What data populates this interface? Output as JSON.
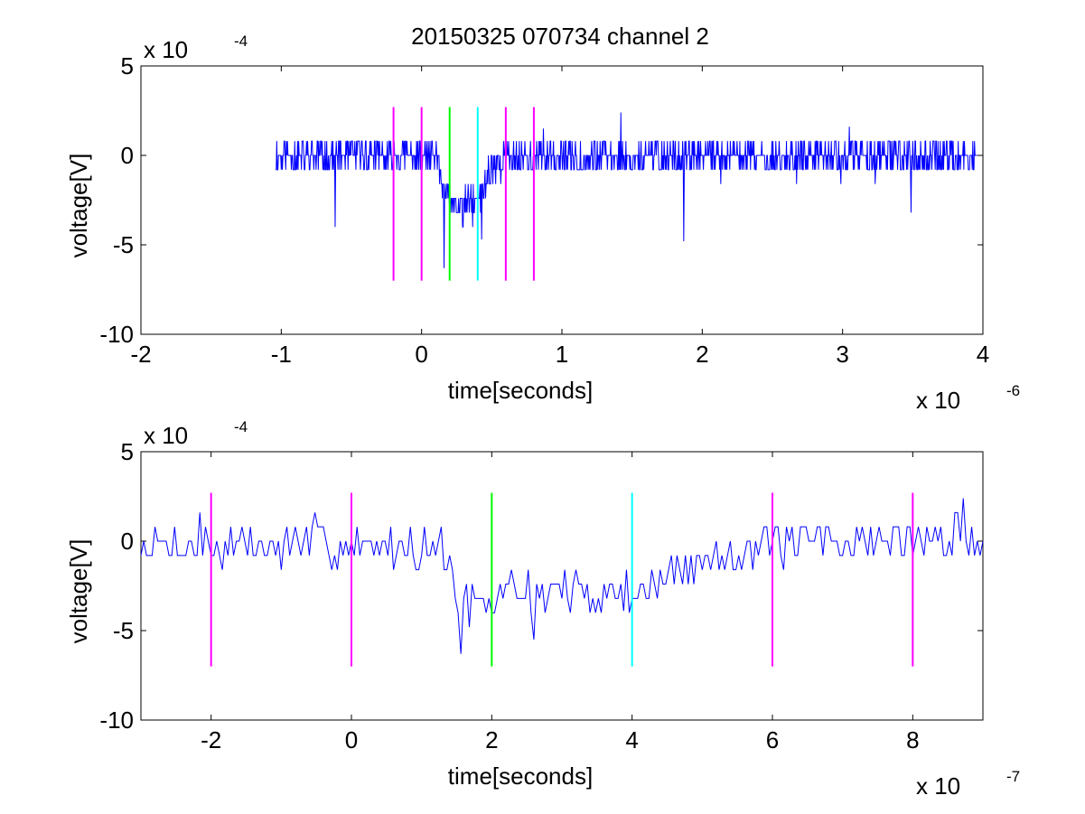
{
  "figure": {
    "title": "20150325 070734 channel 2"
  },
  "chart_data": [
    {
      "type": "line",
      "xlabel": "time[seconds]",
      "ylabel": "voltage[V]",
      "x_exponent_label": "x 10",
      "x_exponent": "-6",
      "y_exponent_label": "x 10",
      "y_exponent": "-4",
      "xlim": [
        -2,
        4
      ],
      "ylim": [
        -10,
        5
      ],
      "xticks": [
        -2,
        -1,
        0,
        1,
        2,
        3,
        4
      ],
      "xtick_labels": [
        "-2",
        "-1",
        "0",
        "1",
        "2",
        "3",
        "4"
      ],
      "yticks": [
        -10,
        -5,
        0,
        5
      ],
      "ytick_labels": [
        "-10",
        "-5",
        "0",
        "5"
      ],
      "grid": false,
      "trace": {
        "color": "#0000ff",
        "x_start": -1.04,
        "x_end": 3.96,
        "x_step": 0.004,
        "envelope": [
          [
            -1.04,
            0.0
          ],
          [
            -0.3,
            0.0
          ],
          [
            -0.25,
            -0.2
          ],
          [
            -0.2,
            0.0
          ],
          [
            0.1,
            -0.1
          ],
          [
            0.15,
            -1.5
          ],
          [
            0.2,
            -2.8
          ],
          [
            0.25,
            -3.0
          ],
          [
            0.3,
            -3.0
          ],
          [
            0.35,
            -2.8
          ],
          [
            0.4,
            -2.6
          ],
          [
            0.45,
            -1.5
          ],
          [
            0.5,
            -0.6
          ],
          [
            0.6,
            -0.2
          ],
          [
            0.8,
            -0.1
          ],
          [
            3.96,
            -0.1
          ]
        ],
        "noise_amplitude": 0.9,
        "quantization": 0.8,
        "seed": 11,
        "spikes": [
          {
            "x": -0.615,
            "y": -4.0
          },
          {
            "x": 0.16,
            "y": -6.3
          },
          {
            "x": 0.43,
            "y": -4.7
          },
          {
            "x": 1.42,
            "y": 2.4
          },
          {
            "x": 1.87,
            "y": -4.8
          },
          {
            "x": 0.87,
            "y": 1.5
          },
          {
            "x": 3.05,
            "y": 1.6
          },
          {
            "x": 3.49,
            "y": -3.2
          }
        ]
      },
      "markers": [
        {
          "x": -0.2,
          "color": "#ff00ff",
          "ymin": -7.0,
          "ymax": 2.7
        },
        {
          "x": 0.0,
          "color": "#ff00ff",
          "ymin": -7.0,
          "ymax": 2.7
        },
        {
          "x": 0.2,
          "color": "#00ff00",
          "ymin": -7.0,
          "ymax": 2.7
        },
        {
          "x": 0.4,
          "color": "#00ffff",
          "ymin": -7.0,
          "ymax": 2.7
        },
        {
          "x": 0.6,
          "color": "#ff00ff",
          "ymin": -7.0,
          "ymax": 2.7
        },
        {
          "x": 0.8,
          "color": "#ff00ff",
          "ymin": -7.0,
          "ymax": 2.7
        }
      ]
    },
    {
      "type": "line",
      "xlabel": "time[seconds]",
      "ylabel": "voltage[V]",
      "x_exponent_label": "x 10",
      "x_exponent": "-7",
      "y_exponent_label": "x 10",
      "y_exponent": "-4",
      "xlim": [
        -3,
        9
      ],
      "ylim": [
        -10,
        5
      ],
      "xticks": [
        -2,
        0,
        2,
        4,
        6,
        8
      ],
      "xtick_labels": [
        "-2",
        "0",
        "2",
        "4",
        "6",
        "8"
      ],
      "yticks": [
        -10,
        -5,
        0,
        5
      ],
      "ytick_labels": [
        "-10",
        "-5",
        "0",
        "5"
      ],
      "grid": false,
      "trace": {
        "color": "#0000ff",
        "x_start": -3.0,
        "x_end": 9.0,
        "x_step": 0.04,
        "envelope": [
          [
            -3.0,
            -0.2
          ],
          [
            0.8,
            -0.3
          ],
          [
            1.3,
            -0.6
          ],
          [
            1.6,
            -3.5
          ],
          [
            1.9,
            -3.9
          ],
          [
            2.2,
            -2.6
          ],
          [
            3.0,
            -2.8
          ],
          [
            3.8,
            -3.0
          ],
          [
            4.2,
            -2.7
          ],
          [
            4.7,
            -1.8
          ],
          [
            5.2,
            -0.8
          ],
          [
            6.0,
            -0.2
          ],
          [
            9.0,
            0.2
          ]
        ],
        "noise_amplitude": 1.1,
        "quantization": 0.8,
        "seed": 7,
        "spikes": [
          {
            "x": 1.57,
            "y": -6.3
          },
          {
            "x": 2.6,
            "y": -5.5
          },
          {
            "x": -2.15,
            "y": 1.6
          },
          {
            "x": -0.52,
            "y": 1.6
          },
          {
            "x": 8.7,
            "y": 2.4
          },
          {
            "x": 3.88,
            "y": -3.9
          }
        ]
      },
      "markers": [
        {
          "x": -2,
          "color": "#ff00ff",
          "ymin": -7.0,
          "ymax": 2.7
        },
        {
          "x": 0,
          "color": "#ff00ff",
          "ymin": -7.0,
          "ymax": 2.7
        },
        {
          "x": 2,
          "color": "#00ff00",
          "ymin": -7.0,
          "ymax": 2.7
        },
        {
          "x": 4,
          "color": "#00ffff",
          "ymin": -7.0,
          "ymax": 2.7
        },
        {
          "x": 6,
          "color": "#ff00ff",
          "ymin": -7.0,
          "ymax": 2.7
        },
        {
          "x": 8,
          "color": "#ff00ff",
          "ymin": -7.0,
          "ymax": 2.7
        }
      ]
    }
  ]
}
